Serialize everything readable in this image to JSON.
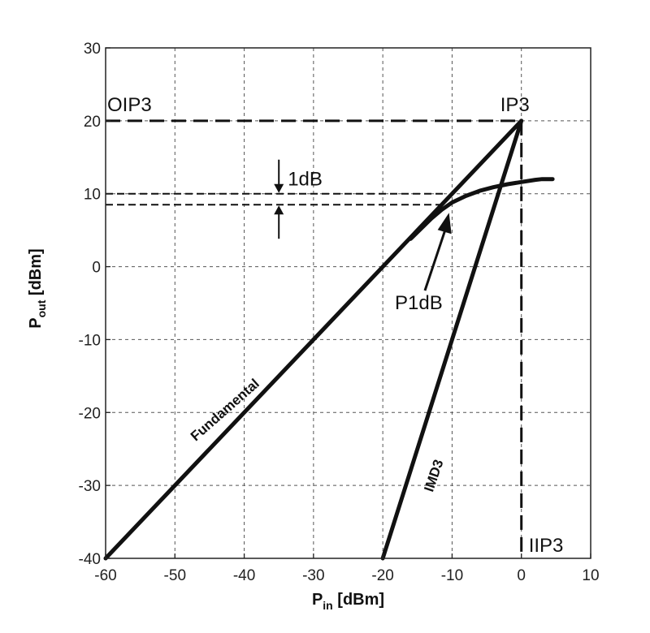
{
  "chart_data": {
    "type": "line",
    "xlabel": {
      "main": "P",
      "sub": "in",
      "unit": " [dBm]"
    },
    "ylabel": {
      "main": "P",
      "sub": "out",
      "unit": " [dBm]"
    },
    "xlim": [
      -60,
      10
    ],
    "ylim": [
      -40,
      30
    ],
    "xticks": [
      -60,
      -50,
      -40,
      -30,
      -20,
      -10,
      0,
      10
    ],
    "yticks": [
      -40,
      -30,
      -20,
      -10,
      0,
      10,
      20,
      30
    ],
    "grid": true,
    "series": [
      {
        "name": "Fundamental",
        "x": [
          -60,
          0
        ],
        "y": [
          -40,
          20
        ]
      },
      {
        "name": "IMD3",
        "x": [
          -20,
          0
        ],
        "y": [
          -40,
          20
        ]
      },
      {
        "name": "",
        "x": [
          -16,
          -13,
          -11.5,
          -10,
          -8,
          -6,
          -4,
          -2,
          0,
          2,
          3,
          4.5
        ],
        "y": [
          3.8,
          6.6,
          7.8,
          8.8,
          9.7,
          10.4,
          10.9,
          11.3,
          11.6,
          11.9,
          12.0,
          12.0
        ]
      }
    ],
    "points": {
      "ip3": [
        0,
        20
      ],
      "p1db": [
        -11.5,
        8.5
      ],
      "dB_marker": [
        -35,
        10,
        8.5
      ]
    },
    "annotations": {
      "oip3": "OIP3",
      "ip3": "IP3",
      "iip3": "IIP3",
      "one_db": "1dB",
      "p1db": "P1dB",
      "fundamental": "Fundamental",
      "imd3": "IMD3"
    }
  }
}
